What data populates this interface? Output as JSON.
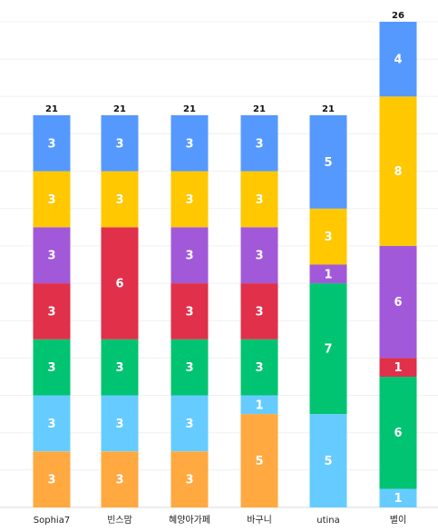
{
  "chart_data": {
    "type": "bar",
    "stacked": true,
    "categories": [
      "Sophia7",
      "빈스맘",
      "혜양아가페",
      "바구니",
      "utina",
      "별이"
    ],
    "totals": [
      21,
      21,
      21,
      21,
      21,
      26
    ],
    "ylim": [
      0,
      26
    ],
    "grid": true,
    "legend": "none",
    "series": [
      {
        "color": "#FFA940",
        "values": [
          3,
          3,
          3,
          5,
          0,
          0
        ]
      },
      {
        "color": "#66CCFF",
        "values": [
          3,
          3,
          3,
          1,
          5,
          1
        ]
      },
      {
        "color": "#00C471",
        "values": [
          3,
          3,
          3,
          3,
          7,
          6
        ]
      },
      {
        "color": "#E0304A",
        "values": [
          3,
          6,
          3,
          3,
          0,
          1
        ]
      },
      {
        "color": "#A259D9",
        "values": [
          3,
          0,
          3,
          3,
          1,
          6
        ]
      },
      {
        "color": "#FFC800",
        "values": [
          3,
          3,
          3,
          3,
          3,
          8
        ]
      },
      {
        "color": "#5599FF",
        "values": [
          3,
          3,
          3,
          3,
          5,
          4
        ]
      }
    ]
  }
}
